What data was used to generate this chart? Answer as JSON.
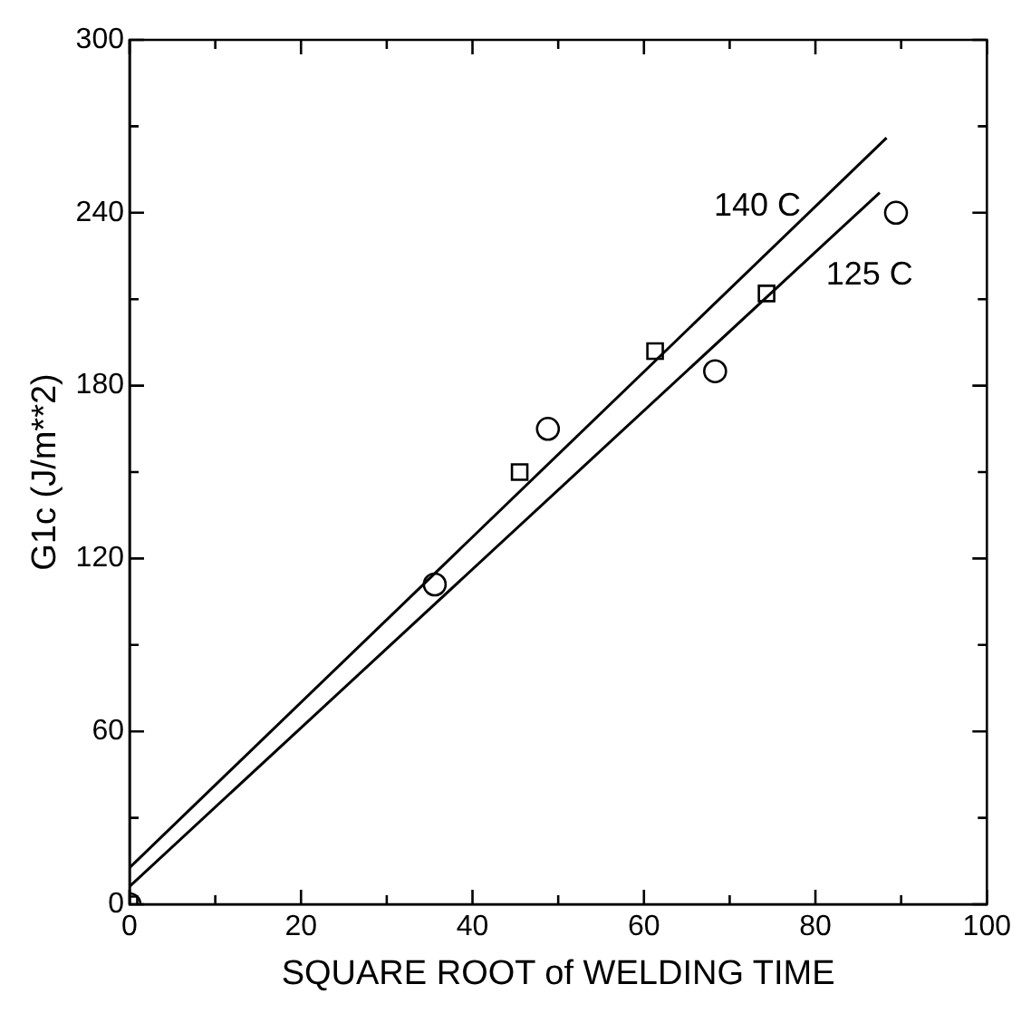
{
  "chart_data": {
    "type": "scatter",
    "xlabel": "SQUARE ROOT of WELDING TIME",
    "ylabel": "G1c (J/m**2)",
    "xlim": [
      0,
      100
    ],
    "xticks": [
      0,
      20,
      40,
      60,
      80,
      100
    ],
    "ylim": [
      0,
      300
    ],
    "yticks": [
      0,
      60,
      120,
      180,
      240,
      300
    ],
    "grid": false,
    "legend": false,
    "series": [
      {
        "marker": "circle",
        "color": "#000000",
        "x": [
          0,
          35.6,
          48.8,
          68.3,
          89.4
        ],
        "values": [
          0,
          111,
          165,
          185,
          240
        ]
      },
      {
        "marker": "square",
        "color": "#000000",
        "x": [
          0,
          45.5,
          61.3,
          74.3
        ],
        "values": [
          0,
          150,
          192,
          212
        ]
      },
      {
        "type": "line",
        "marker": "none",
        "name": "140 C",
        "color": "#000000",
        "x": [
          0,
          88.3
        ],
        "values": [
          12.7,
          266
        ]
      },
      {
        "type": "line",
        "marker": "none",
        "name": "125 C",
        "color": "#000000",
        "x": [
          0,
          87.5
        ],
        "values": [
          6.2,
          247
        ]
      }
    ]
  }
}
